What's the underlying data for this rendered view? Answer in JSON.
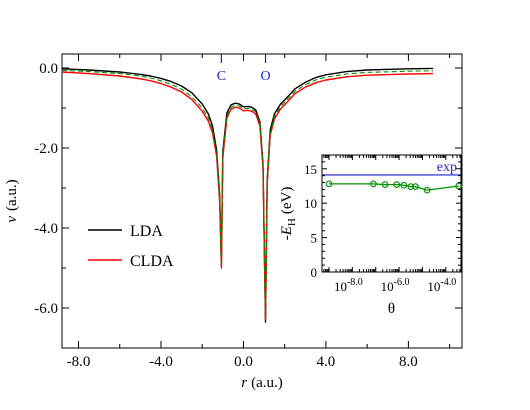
{
  "chart_data": [
    {
      "type": "line",
      "xlabel_var": "r",
      "xlabel_unit": "(a.u.)",
      "ylabel_var": "v",
      "ylabel_unit": "(a.u.)",
      "xlim": [
        -8.8,
        10.6
      ],
      "ylim": [
        -7.0,
        0.35
      ],
      "x_ticks": [
        -8.0,
        -4.0,
        0.0,
        4.0,
        8.0
      ],
      "x_tick_labels": [
        "-8.0",
        "-4.0",
        "0.0",
        "4.0",
        "8.0"
      ],
      "y_ticks": [
        0.0,
        -2.0,
        -4.0,
        -6.0
      ],
      "y_tick_labels": [
        "0.0",
        "-2.0",
        "-4.0",
        "-6.0"
      ],
      "grid": false,
      "legend_position": "bottom-left",
      "atom_markers": [
        {
          "label": "C",
          "x": -1.07
        },
        {
          "label": "O",
          "x": 1.07
        }
      ],
      "series": [
        {
          "name": "LDA",
          "color": "#000000",
          "x": [
            -8.8,
            -7.5,
            -6.0,
            -5.0,
            -4.5,
            -4.0,
            -3.5,
            -3.0,
            -2.5,
            -2.0,
            -1.7,
            -1.5,
            -1.3,
            -1.15,
            -1.07,
            -1.0,
            -0.8,
            -0.6,
            -0.4,
            -0.2,
            0.0,
            0.2,
            0.4,
            0.6,
            0.8,
            0.95,
            1.07,
            1.15,
            1.3,
            1.5,
            1.8,
            2.0,
            2.5,
            3.0,
            3.5,
            4.0,
            5.0,
            6.0,
            8.0,
            9.2
          ],
          "y": [
            -0.02,
            -0.05,
            -0.1,
            -0.16,
            -0.2,
            -0.26,
            -0.34,
            -0.45,
            -0.62,
            -0.9,
            -1.15,
            -1.45,
            -2.05,
            -3.2,
            -4.95,
            -2.1,
            -1.12,
            -0.92,
            -0.88,
            -0.9,
            -0.97,
            -0.96,
            -0.98,
            -1.05,
            -1.35,
            -2.4,
            -6.35,
            -2.8,
            -1.55,
            -1.15,
            -0.9,
            -0.8,
            -0.52,
            -0.36,
            -0.24,
            -0.17,
            -0.09,
            -0.05,
            -0.02,
            -0.01
          ]
        },
        {
          "name": "CLDA",
          "color": "#ff0000",
          "x": [
            -8.8,
            -7.5,
            -6.0,
            -5.0,
            -4.5,
            -4.0,
            -3.5,
            -3.0,
            -2.5,
            -2.0,
            -1.7,
            -1.5,
            -1.3,
            -1.15,
            -1.07,
            -1.0,
            -0.8,
            -0.6,
            -0.4,
            -0.2,
            0.0,
            0.2,
            0.4,
            0.6,
            0.8,
            0.95,
            1.07,
            1.15,
            1.3,
            1.5,
            1.8,
            2.0,
            2.5,
            3.0,
            3.5,
            4.0,
            5.0,
            6.0,
            8.0,
            9.2
          ],
          "y": [
            -0.1,
            -0.14,
            -0.2,
            -0.27,
            -0.32,
            -0.39,
            -0.48,
            -0.6,
            -0.79,
            -1.08,
            -1.33,
            -1.62,
            -2.2,
            -3.35,
            -5.0,
            -2.25,
            -1.25,
            -1.03,
            -0.98,
            -1.0,
            -1.07,
            -1.06,
            -1.08,
            -1.15,
            -1.45,
            -2.5,
            -6.3,
            -2.9,
            -1.68,
            -1.28,
            -1.02,
            -0.92,
            -0.64,
            -0.48,
            -0.37,
            -0.3,
            -0.22,
            -0.18,
            -0.15,
            -0.14
          ]
        },
        {
          "color": "#009000",
          "style": "dashed",
          "x": [
            -8.8,
            -7.5,
            -6.0,
            -5.0,
            -4.5,
            -4.0,
            -3.5,
            -3.0,
            -2.5,
            -2.0,
            -1.7,
            -1.5,
            -1.3,
            -1.15,
            -1.07,
            -1.0,
            -0.8,
            -0.6,
            -0.4,
            -0.2,
            0.0,
            0.2,
            0.4,
            0.6,
            0.8,
            0.95,
            1.07,
            1.15,
            1.3,
            1.5,
            1.8,
            2.0,
            2.5,
            3.0,
            3.5,
            4.0,
            5.0,
            6.0,
            8.0,
            9.2
          ],
          "y": [
            -0.06,
            -0.09,
            -0.14,
            -0.2,
            -0.25,
            -0.32,
            -0.41,
            -0.53,
            -0.72,
            -1.0,
            -1.25,
            -1.55,
            -2.15,
            -3.28,
            -4.98,
            -2.18,
            -1.2,
            -0.98,
            -0.93,
            -0.95,
            -1.02,
            -1.01,
            -1.03,
            -1.1,
            -1.4,
            -2.45,
            -6.32,
            -2.85,
            -1.62,
            -1.22,
            -0.96,
            -0.86,
            -0.58,
            -0.42,
            -0.3,
            -0.23,
            -0.15,
            -0.11,
            -0.08,
            -0.07
          ]
        }
      ]
    },
    {
      "type": "line",
      "xlabel": "θ",
      "ylabel_prefix": "-",
      "ylabel_var": "E",
      "ylabel_sub": "H",
      "ylabel_unit": "(eV)",
      "xscale": "log",
      "xlim_log10": [
        -9.3,
        -3.35
      ],
      "ylim": [
        0,
        17
      ],
      "y_ticks": [
        0,
        5,
        10,
        15
      ],
      "y_tick_labels": [
        "0",
        "5",
        "10",
        "15"
      ],
      "x_major_log10": [
        -8.0,
        -6.0,
        -4.0
      ],
      "x_tick_base": "10",
      "x_tick_exponents": [
        "-8.0",
        "-6.0",
        "-4.0"
      ],
      "reference_line": {
        "label": "exp",
        "value": 14.1,
        "color": "#1f1fd0"
      },
      "series": [
        {
          "color": "#009000",
          "marker": "circle",
          "x_log10": [
            -9.0,
            -7.1,
            -6.6,
            -6.1,
            -5.8,
            -5.5,
            -5.3,
            -4.8,
            -3.45
          ],
          "y": [
            12.8,
            12.8,
            12.7,
            12.7,
            12.6,
            12.4,
            12.4,
            11.9,
            12.5
          ]
        }
      ]
    }
  ]
}
